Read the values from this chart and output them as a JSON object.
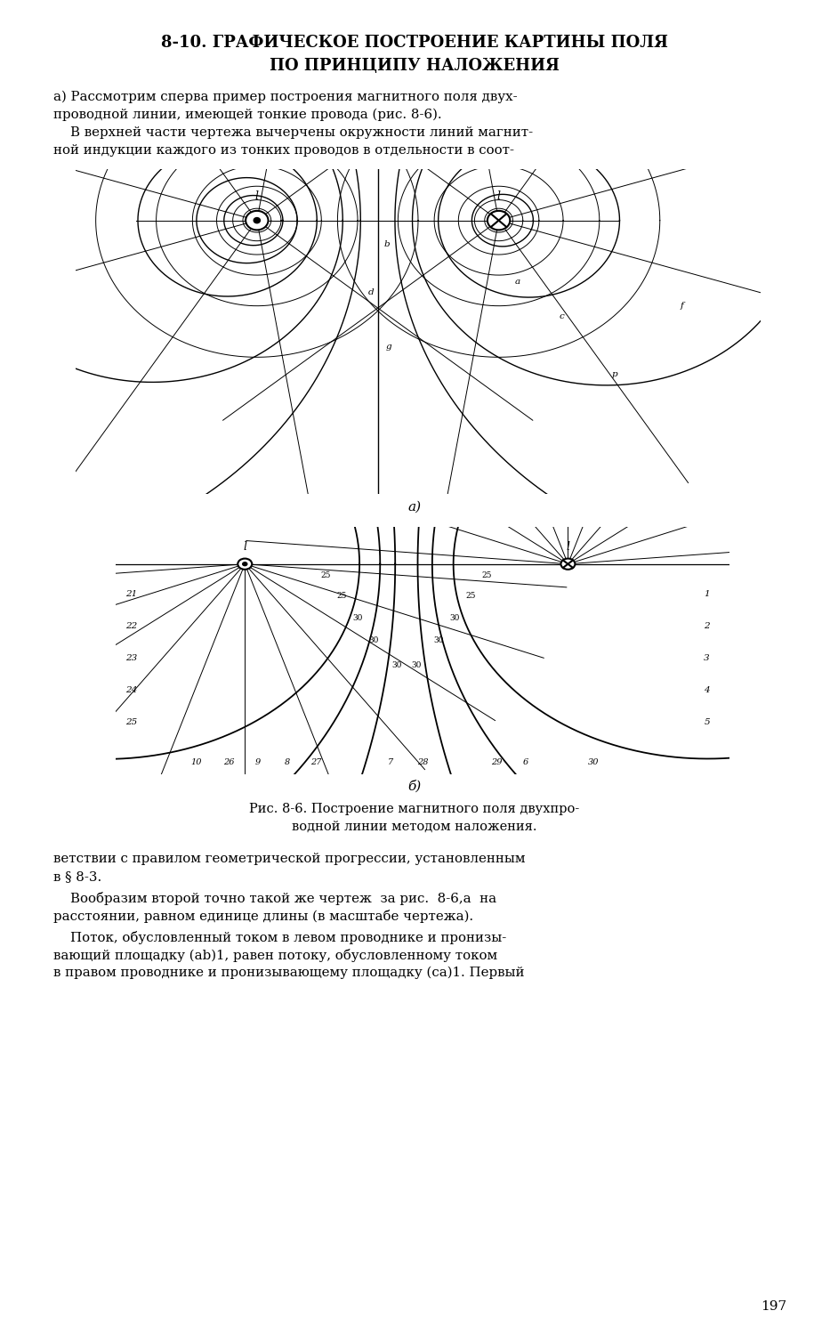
{
  "title_line1": "8-10. ГРАФИЧЕСКОЕ ПОСТРОЕНИЕ КАРТИНЫ ПОЛЯ",
  "title_line2": "ПО ПРИНЦИПУ НАЛОЖЕНИЯ",
  "para1": "а) Рассмотрим сперва пример построения магнитного поля двух-",
  "para2": "проводной линии, имеющей тонкие провода (рис. 8-6).",
  "para3": "    В верхней части чертежа вычерчены окружности линий магнит-",
  "para4": "ной индукции каждого из тонких проводов в отдельности в соот-",
  "label_a": "а)",
  "label_b": "б)",
  "caption1": "Рис. 8-6. Построение магнитного поля двухпро-",
  "caption2": "водной линии методом наложения.",
  "btext1": "ветствии с правилом геометрической прогрессии, установленным",
  "btext2": "в § 8-3.",
  "btext3": "    Вообразим второй точно такой же чертеж  за рис.  8-6,а  на",
  "btext4": "расстоянии, равном единице длины (в масштабе чертежа).",
  "btext5": "    Поток, обусловленный током в левом проводнике и пронизы-",
  "btext6": "вающий площадку (ab)1, равен потоку, обусловленному током",
  "btext7": "в правом проводнике и пронизывающему площадку (ca)1. Первый",
  "page_num": "197",
  "bg_color": "#ffffff"
}
